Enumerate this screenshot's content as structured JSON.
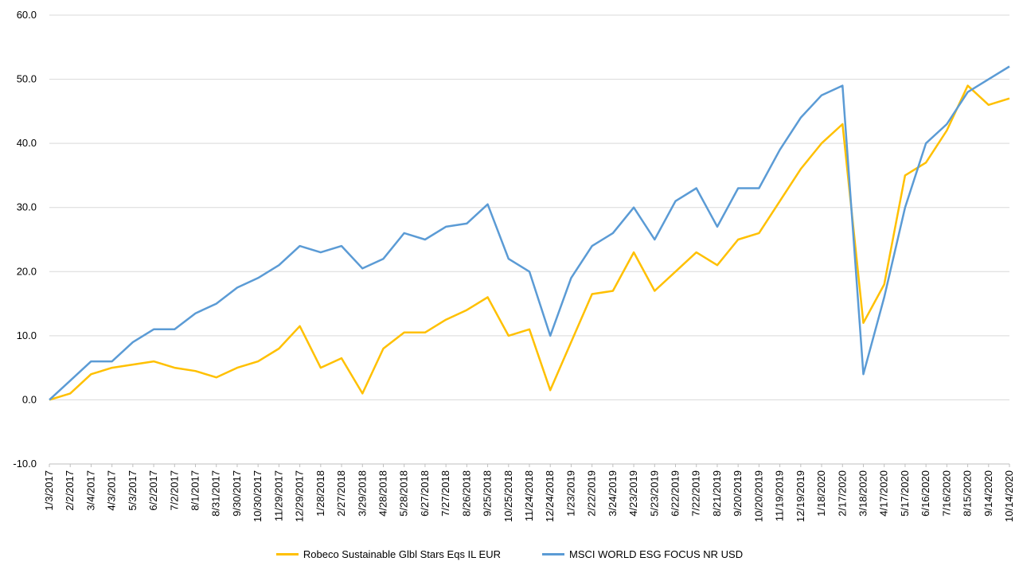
{
  "colors": {
    "fund": "#FFC000",
    "index": "#5B9BD5",
    "grid": "#D9D9D9",
    "text": "#000000"
  },
  "chart_data": {
    "type": "line",
    "title": "",
    "xlabel": "",
    "ylabel": "",
    "ylim": [
      -10,
      60
    ],
    "yticks": [
      "-10.0",
      "0.0",
      "10.0",
      "20.0",
      "30.0",
      "40.0",
      "50.0",
      "60.0"
    ],
    "grid": true,
    "legend_position": "bottom",
    "categories": [
      "1/3/2017",
      "2/2/2017",
      "3/4/2017",
      "4/3/2017",
      "5/3/2017",
      "6/2/2017",
      "7/2/2017",
      "8/1/2017",
      "8/31/2017",
      "9/30/2017",
      "10/30/2017",
      "11/29/2017",
      "12/29/2017",
      "1/28/2018",
      "2/27/2018",
      "3/29/2018",
      "4/28/2018",
      "5/28/2018",
      "6/27/2018",
      "7/27/2018",
      "8/26/2018",
      "9/25/2018",
      "10/25/2018",
      "11/24/2018",
      "12/24/2018",
      "1/23/2019",
      "2/22/2019",
      "3/24/2019",
      "4/23/2019",
      "5/23/2019",
      "6/22/2019",
      "7/22/2019",
      "8/21/2019",
      "9/20/2019",
      "10/20/2019",
      "11/19/2019",
      "12/19/2019",
      "1/18/2020",
      "2/17/2020",
      "3/18/2020",
      "4/17/2020",
      "5/17/2020",
      "6/16/2020",
      "7/16/2020",
      "8/15/2020",
      "9/14/2020",
      "10/14/2020"
    ],
    "series": [
      {
        "name": "Robeco Sustainable Glbl Stars Eqs IL EUR",
        "values": [
          0.0,
          1.0,
          4.0,
          5.0,
          5.5,
          6.0,
          5.0,
          4.5,
          3.5,
          5.0,
          6.0,
          8.0,
          11.5,
          5.0,
          6.5,
          1.0,
          8.0,
          10.5,
          10.5,
          12.5,
          14.0,
          16.0,
          10.0,
          11.0,
          1.5,
          9.0,
          16.5,
          17.0,
          23.0,
          17.0,
          20.0,
          23.0,
          21.0,
          25.0,
          26.0,
          31.0,
          36.0,
          40.0,
          43.0,
          12.0,
          18.0,
          35.0,
          37.0,
          42.0,
          49.0,
          46.0,
          47.0
        ]
      },
      {
        "name": "MSCI WORLD ESG FOCUS NR USD",
        "values": [
          0.0,
          3.0,
          6.0,
          6.0,
          9.0,
          11.0,
          11.0,
          13.5,
          15.0,
          17.5,
          19.0,
          21.0,
          24.0,
          23.0,
          24.0,
          20.5,
          22.0,
          26.0,
          25.0,
          27.0,
          27.5,
          30.5,
          22.0,
          20.0,
          10.0,
          19.0,
          24.0,
          26.0,
          30.0,
          25.0,
          31.0,
          33.0,
          27.0,
          33.0,
          33.0,
          39.0,
          44.0,
          47.5,
          49.0,
          4.0,
          16.0,
          30.0,
          40.0,
          43.0,
          48.0,
          50.0,
          52.0
        ]
      }
    ]
  },
  "legend": {
    "fund_label": "Robeco Sustainable Glbl Stars Eqs IL EUR",
    "index_label": "MSCI WORLD ESG FOCUS NR USD"
  }
}
